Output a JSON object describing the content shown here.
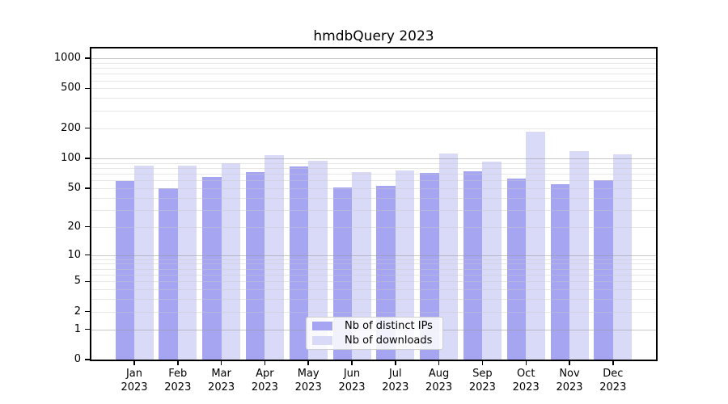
{
  "chart_data": {
    "type": "bar",
    "title": "hmdbQuery 2023",
    "categories": [
      "Jan 2023",
      "Feb 2023",
      "Mar 2023",
      "Apr 2023",
      "May 2023",
      "Jun 2023",
      "Jul 2023",
      "Aug 2023",
      "Sep 2023",
      "Oct 2023",
      "Nov 2023",
      "Dec 2023"
    ],
    "series": [
      {
        "name": "Nb of distinct IPs",
        "color": "#a5a5f2",
        "values": [
          59,
          50,
          65,
          73,
          82,
          51,
          53,
          71,
          74,
          63,
          55,
          60
        ]
      },
      {
        "name": "Nb of downloads",
        "color": "#d9d9f8",
        "values": [
          84,
          85,
          90,
          107,
          95,
          72,
          76,
          112,
          92,
          186,
          119,
          109
        ]
      }
    ],
    "y_axis": {
      "scale": "log1p",
      "tick_values": [
        0,
        1,
        2,
        5,
        10,
        20,
        50,
        100,
        200,
        500,
        1000
      ],
      "ylim": [
        0,
        1250
      ]
    },
    "grid": {
      "major_values": [
        1,
        10,
        100,
        1000
      ],
      "minor_values": [
        2,
        3,
        4,
        5,
        6,
        7,
        8,
        9,
        20,
        30,
        40,
        50,
        60,
        70,
        80,
        90,
        200,
        300,
        400,
        500,
        600,
        700,
        800,
        900
      ],
      "major_color": "#9a9a9a",
      "minor_color": "#c9c9c9"
    },
    "legend": {
      "position": "lower center inside",
      "entries": [
        "Nb of distinct IPs",
        "Nb of downloads"
      ]
    }
  }
}
